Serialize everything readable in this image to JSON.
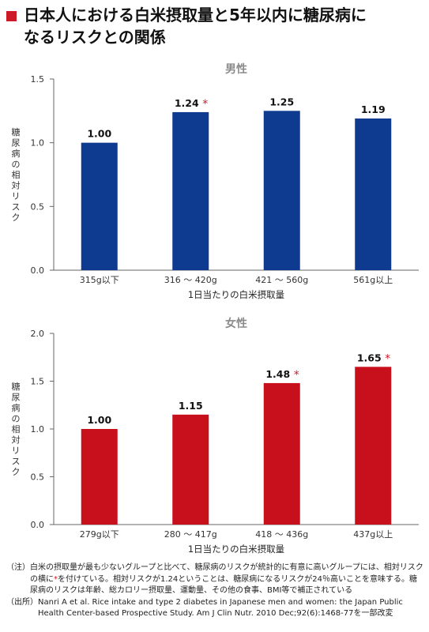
{
  "title": {
    "line1": "日本人における白米摂取量と5年以内に糖尿病に",
    "line2": "なるリスクとの関係"
  },
  "colors": {
    "accent": "#cc1a26",
    "male_bar": "#0e3a8f",
    "female_bar": "#c8101c",
    "axis_text": "#333333",
    "panel_title": "#8a8a8a"
  },
  "chart_data": [
    {
      "type": "bar",
      "title": "男性",
      "xlabel": "1日当たりの白米摂取量",
      "ylabel": "糖尿病の相対リスク",
      "ylim": [
        0,
        1.5
      ],
      "yticks": [
        "0.0",
        "0.5",
        "1.0",
        "1.5"
      ],
      "categories": [
        "315g以下",
        "316 ～ 420g",
        "421 ～ 560g",
        "561g以上"
      ],
      "values": [
        1.0,
        1.24,
        1.25,
        1.19
      ],
      "value_labels": [
        "1.00",
        "1.24",
        "1.25",
        "1.19"
      ],
      "significant": [
        false,
        true,
        false,
        false
      ],
      "grid": false
    },
    {
      "type": "bar",
      "title": "女性",
      "xlabel": "1日当たりの白米摂取量",
      "ylabel": "糖尿病の相対リスク",
      "ylim": [
        0,
        2.0
      ],
      "yticks": [
        "0.0",
        "0.5",
        "1.0",
        "1.5",
        "2.0"
      ],
      "categories": [
        "279g以下",
        "280 ～ 417g",
        "418 ～ 436g",
        "437g以上"
      ],
      "values": [
        1.0,
        1.15,
        1.48,
        1.65
      ],
      "value_labels": [
        "1.00",
        "1.15",
        "1.48",
        "1.65"
      ],
      "significant": [
        false,
        false,
        true,
        true
      ],
      "grid": false
    }
  ],
  "notes": {
    "note_tag": "（注）",
    "note_before": "白米の摂取量が最も少ないグループと比べて、糖尿病のリスクが統計的に有意に高いグループには、相対リスクの横に",
    "note_star": "*",
    "note_after": "を付けている。相対リスクが1.24ということは、糖尿病になるリスクが24％高いことを意味する。糖尿病のリスクは年齢、総カロリー摂取量、運動量、その他の食事、BMI等で補正されている",
    "source_tag": "（出所）",
    "source_text": "Nanri A et al. Rice intake and type 2 diabetes in Japanese men and women: the Japan Public Health Center-based Prospective Study. Am J Clin Nutr. 2010 Dec;92(6):1468-77を一部改変"
  }
}
